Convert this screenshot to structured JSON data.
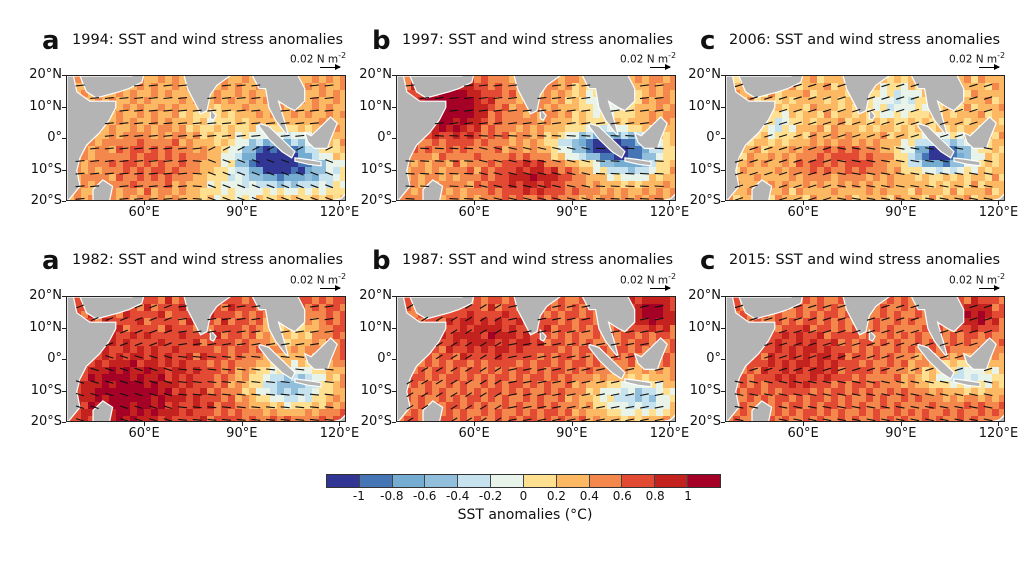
{
  "panels": [
    {
      "letter": "a",
      "title": "1994: SST and wind stress anomalies",
      "scale": "0.02 N m",
      "scale_exp": "-2",
      "pattern": "iod94"
    },
    {
      "letter": "b",
      "title": "1997: SST and wind stress anomalies",
      "scale": "0.02 N m",
      "scale_exp": "-2",
      "pattern": "iod97"
    },
    {
      "letter": "c",
      "title": "2006: SST and wind stress anomalies",
      "scale": "0.02 N m",
      "scale_exp": "-2",
      "pattern": "iod06"
    },
    {
      "letter": "a",
      "title": "1982: SST and wind stress anomalies",
      "scale": "0.02 N m",
      "scale_exp": "-2",
      "pattern": "iod82"
    },
    {
      "letter": "b",
      "title": "1987: SST and wind stress anomalies",
      "scale": "0.02 N m",
      "scale_exp": "-2",
      "pattern": "iod87"
    },
    {
      "letter": "c",
      "title": "2015: SST and wind stress anomalies",
      "scale": "0.02 N m",
      "scale_exp": "-2",
      "pattern": "iod15"
    }
  ],
  "lat_labels": [
    "20°N",
    "10°N",
    "0°",
    "10°S",
    "20°S"
  ],
  "lon_labels": [
    "60°E",
    "90°E",
    "120°E"
  ],
  "colorbar": {
    "label": "SST anomalies (°C)",
    "ticks": [
      "-1",
      "-0.8",
      "-0.6",
      "-0.4",
      "-0.2",
      "0",
      "0.2",
      "0.4",
      "0.6",
      "0.8",
      "1"
    ],
    "colors": [
      "#313695",
      "#4575b4",
      "#74add1",
      "#91bfdb",
      "#c6e2ef",
      "#e8f4ea",
      "#fee090",
      "#fdb863",
      "#f4874b",
      "#e34a33",
      "#c4221f",
      "#a50026"
    ]
  }
}
